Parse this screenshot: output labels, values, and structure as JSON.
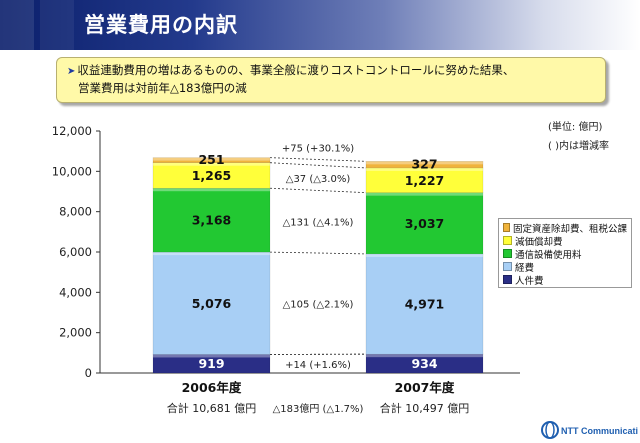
{
  "header": {
    "title": "営業費用の内訳"
  },
  "callout": {
    "line1": "収益連動費用の増はあるものの、事業全般に渡りコストコントロールに努めた結果、",
    "line2": "営業費用は対前年△183億円の減"
  },
  "notes": {
    "unit": "(単位: 億円)",
    "paren": "(   )内は増減率"
  },
  "legend_order": [
    4,
    3,
    2,
    1,
    0
  ],
  "chart_data": {
    "type": "bar",
    "stacked": true,
    "categories": [
      "2006年度",
      "2007年度"
    ],
    "category_totals": [
      "合計 10,681 億円",
      "合計 10,497 億円"
    ],
    "total_change": "△183億円 (△1.7%)",
    "ylim": [
      0,
      12000
    ],
    "yticks": [
      "0",
      "2,000",
      "4,000",
      "6,000",
      "8,000",
      "10,000",
      "12,000"
    ],
    "series": [
      {
        "name": "人件費",
        "values": [
          919,
          934
        ],
        "labels": [
          "919",
          "934"
        ],
        "change": "+14 (+1.6%)",
        "color": "#2a2e86"
      },
      {
        "name": "経費",
        "values": [
          5076,
          4971
        ],
        "labels": [
          "5,076",
          "4,971"
        ],
        "change": "△105 (△2.1%)",
        "color": "#a8cff5"
      },
      {
        "name": "通信設備使用料",
        "values": [
          3168,
          3037
        ],
        "labels": [
          "3,168",
          "3,037"
        ],
        "change": "△131 (△4.1%)",
        "color": "#22c832"
      },
      {
        "name": "減価償却費",
        "values": [
          1265,
          1227
        ],
        "labels": [
          "1,265",
          "1,227"
        ],
        "change": "△37 (△3.0%)",
        "color": "#ffff3a"
      },
      {
        "name": "固定資産除却費、租税公課",
        "values": [
          251,
          327
        ],
        "labels": [
          "251",
          "327"
        ],
        "change": "+75 (+30.1%)",
        "color": "#f0b33b"
      }
    ]
  },
  "logo": {
    "text": "NTT Communications"
  }
}
